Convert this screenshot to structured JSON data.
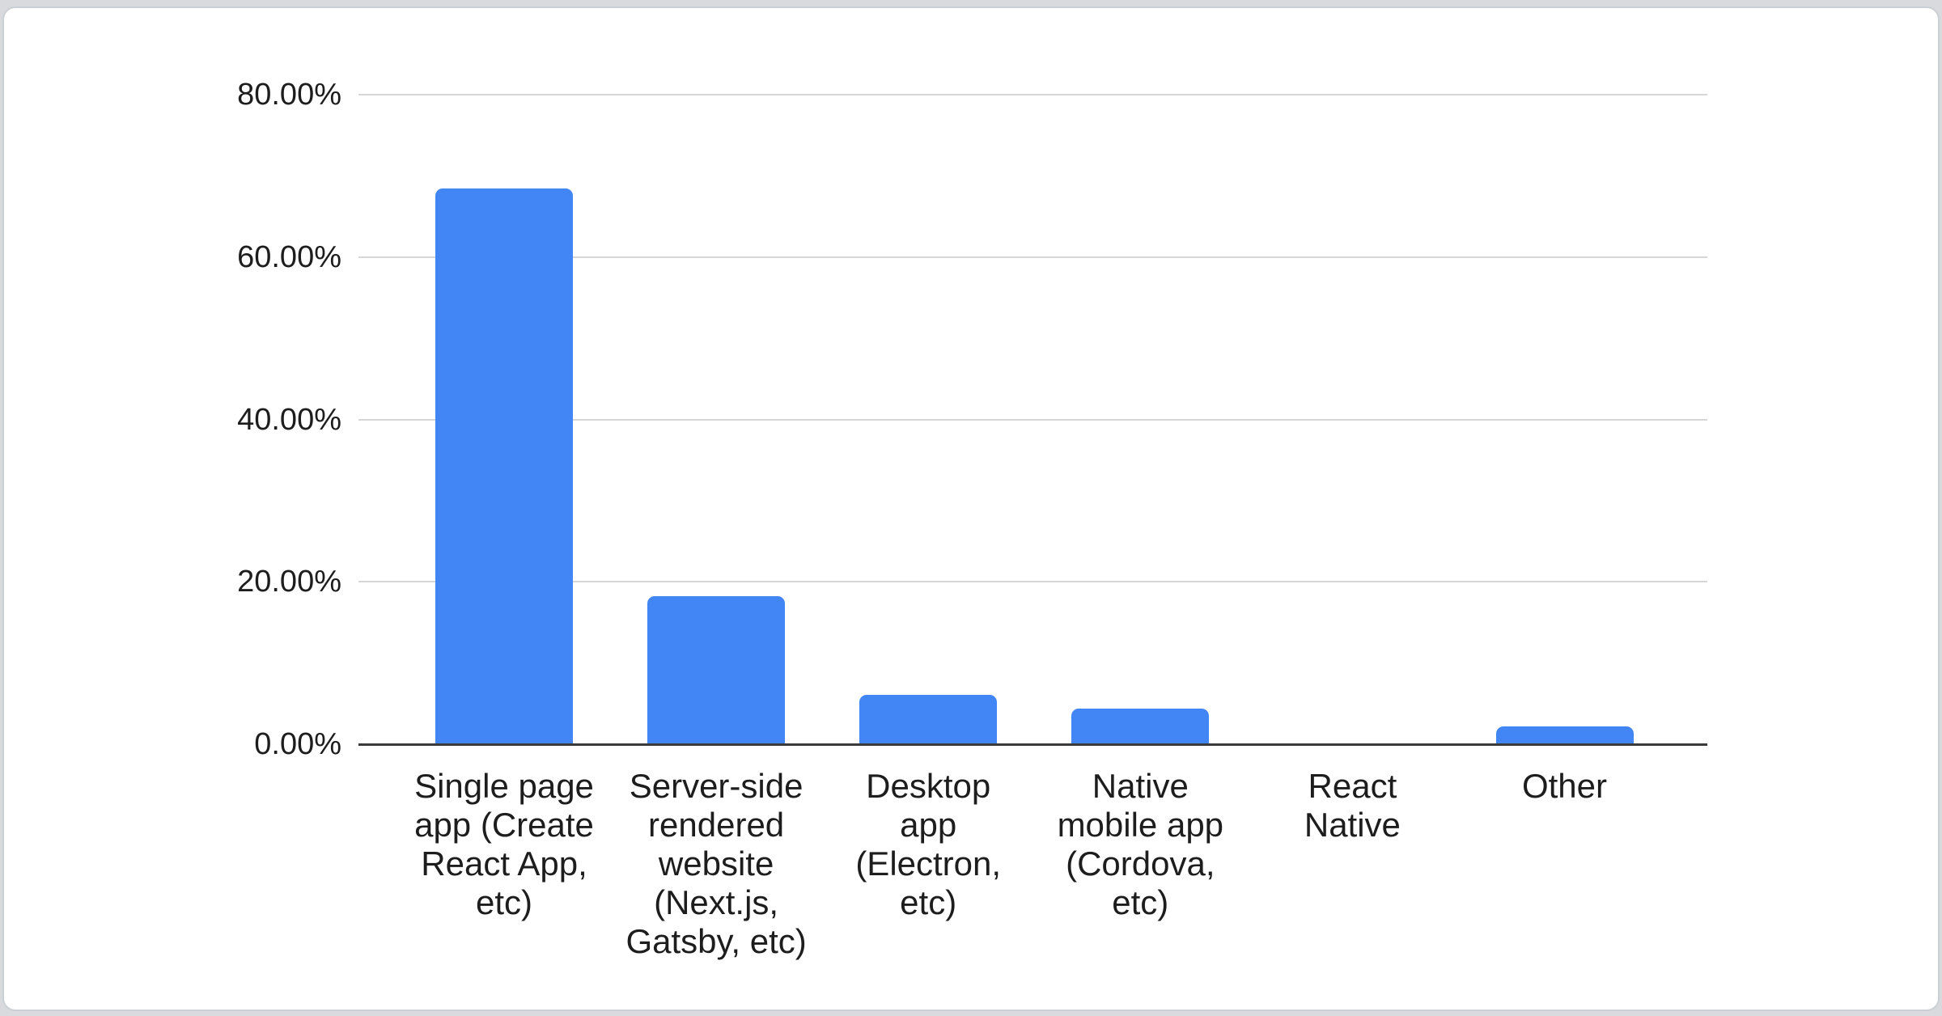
{
  "page": {
    "background": "#d8dade",
    "card_background": "#ffffff",
    "card_border": "#cbd0d5"
  },
  "chart_data": {
    "type": "bar",
    "title": "",
    "categories": [
      "Single page app (Create React App, etc)",
      "Server-side rendered website (Next.js, Gatsby, etc)",
      "Desktop app (Electron, etc)",
      "Native mobile app (Cordova, etc)",
      "React Native",
      "Other"
    ],
    "categories_wrapped": [
      [
        "Single page",
        "app (Create",
        "React App,",
        "etc)"
      ],
      [
        "Server-side",
        "rendered",
        "website",
        "(Next.js,",
        "Gatsby, etc)"
      ],
      [
        "Desktop",
        "app",
        "(Electron,",
        "etc)"
      ],
      [
        "Native",
        "mobile app",
        "(Cordova,",
        "etc)"
      ],
      [
        "React",
        "Native"
      ],
      [
        "Other"
      ]
    ],
    "values": [
      68.4,
      18.2,
      6.1,
      4.4,
      0,
      2.2
    ],
    "value_unit": "%",
    "ylim": [
      0,
      80
    ],
    "ytick_step": 20,
    "ytick_labels": [
      "0.00%",
      "20.00%",
      "40.00%",
      "60.00%",
      "80.00%"
    ],
    "grid": true,
    "legend": "none",
    "bar_color": "#4285f4",
    "gridline_color": "#d6d6d6",
    "axis_line_color": "#3a3a3a",
    "label_color": "#1d1d1d"
  }
}
